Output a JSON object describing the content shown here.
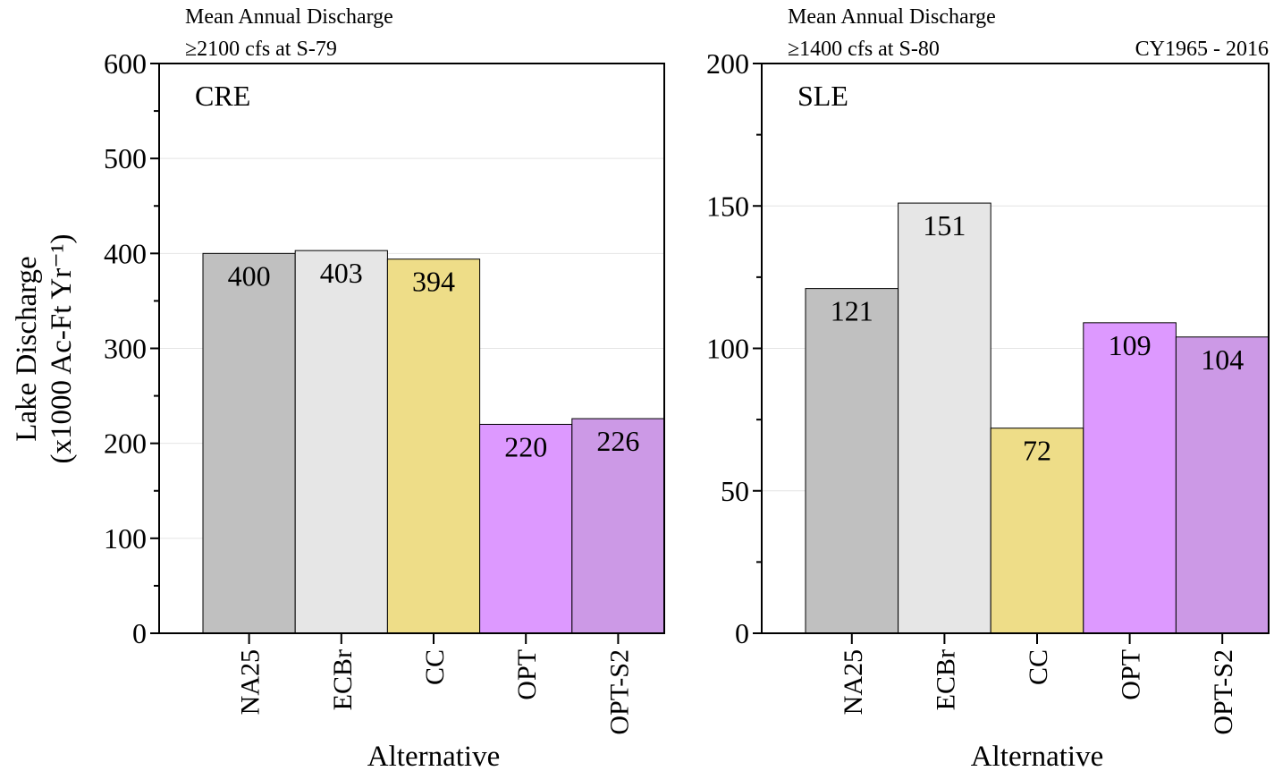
{
  "figure": {
    "ylabel_line1": "Lake Discharge",
    "ylabel_line2": "(x1000 Ac-Ft Yr⁻¹)",
    "xlabel": "Alternative",
    "period": "CY1965 - 2016"
  },
  "colors": {
    "NA25": "#c0c0c0",
    "ECBr": "#e6e6e6",
    "CC": "#eedd88",
    "OPT": "#dd99ff",
    "OPT-S2": "#cc99e6"
  },
  "chart_data": [
    {
      "type": "bar",
      "panel_label": "CRE",
      "title_line1": "Mean Annual Discharge",
      "title_line2": "≥2100 cfs at S-79",
      "categories": [
        "NA25",
        "ECBr",
        "CC",
        "OPT",
        "OPT-S2"
      ],
      "values": [
        400,
        403,
        394,
        220,
        226
      ],
      "ylim": [
        0,
        600
      ],
      "yticks": [
        0,
        100,
        200,
        300,
        400,
        500,
        600
      ],
      "xlabel": "Alternative",
      "ylabel": "Lake Discharge (x1000 Ac-Ft Yr⁻¹)",
      "grid": true
    },
    {
      "type": "bar",
      "panel_label": "SLE",
      "title_line1": "Mean Annual Discharge",
      "title_line2": "≥1400 cfs at S-80",
      "title_right": "CY1965 - 2016",
      "categories": [
        "NA25",
        "ECBr",
        "CC",
        "OPT",
        "OPT-S2"
      ],
      "values": [
        121,
        151,
        72,
        109,
        104
      ],
      "ylim": [
        0,
        200
      ],
      "yticks": [
        0,
        50,
        100,
        150,
        200
      ],
      "xlabel": "Alternative",
      "grid": true
    }
  ]
}
